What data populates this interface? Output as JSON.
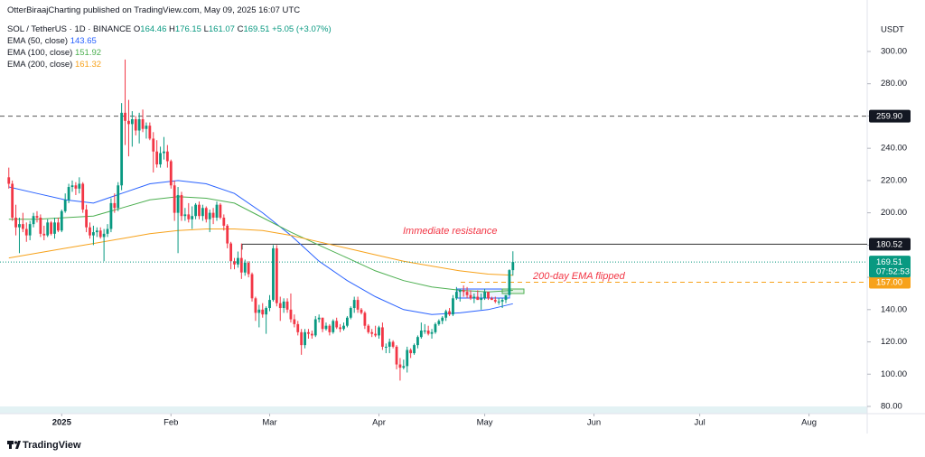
{
  "header": {
    "publisher": "OtterBiraajCharting published on TradingView.com, May 09, 2025 16:07 UTC",
    "symbol": "SOL / TetherUS · 1D · BINANCE",
    "ohlc_letters": [
      "O",
      "H",
      "L",
      "C"
    ],
    "change": "+5.05 (+3.07%)",
    "currency": "USDT",
    "countdown": "07:52:53",
    "brand": "TradingView"
  },
  "chart_data": {
    "type": "candlestick",
    "up_color": "#089981",
    "down_color": "#f23645",
    "candles": [
      [
        222,
        228,
        215,
        218
      ],
      [
        218,
        220,
        195,
        197
      ],
      [
        197,
        205,
        186,
        191
      ],
      [
        191,
        197,
        175,
        193
      ],
      [
        193,
        200,
        188,
        190
      ],
      [
        190,
        194,
        182,
        186
      ],
      [
        186,
        195,
        183,
        193
      ],
      [
        193,
        200,
        191,
        198
      ],
      [
        198,
        201,
        194,
        197
      ],
      [
        197,
        199,
        185,
        187
      ],
      [
        187,
        192,
        183,
        186
      ],
      [
        186,
        196,
        185,
        194
      ],
      [
        194,
        195,
        186,
        187
      ],
      [
        187,
        197,
        184,
        194
      ],
      [
        194,
        197,
        188,
        189
      ],
      [
        189,
        202,
        188,
        201
      ],
      [
        201,
        212,
        200,
        208
      ],
      [
        208,
        218,
        206,
        216
      ],
      [
        216,
        220,
        213,
        217
      ],
      [
        217,
        219,
        211,
        215
      ],
      [
        215,
        222,
        212,
        218
      ],
      [
        218,
        219,
        200,
        202
      ],
      [
        202,
        205,
        188,
        191
      ],
      [
        191,
        194,
        184,
        186
      ],
      [
        186,
        192,
        180,
        188
      ],
      [
        188,
        191,
        185,
        189
      ],
      [
        189,
        191,
        184,
        185
      ],
      [
        185,
        190,
        170,
        187
      ],
      [
        187,
        193,
        185,
        190
      ],
      [
        190,
        209,
        188,
        206
      ],
      [
        206,
        212,
        200,
        203
      ],
      [
        203,
        219,
        201,
        217
      ],
      [
        217,
        268,
        214,
        262
      ],
      [
        262,
        295,
        242,
        257
      ],
      [
        257,
        270,
        235,
        255
      ],
      [
        255,
        263,
        241,
        258
      ],
      [
        258,
        260,
        248,
        251
      ],
      [
        251,
        262,
        243,
        258
      ],
      [
        258,
        264,
        250,
        252
      ],
      [
        252,
        256,
        246,
        254
      ],
      [
        254,
        256,
        245,
        246
      ],
      [
        246,
        250,
        225,
        238
      ],
      [
        238,
        245,
        228,
        230
      ],
      [
        230,
        241,
        228,
        237
      ],
      [
        237,
        247,
        233,
        238
      ],
      [
        238,
        242,
        228,
        232
      ],
      [
        232,
        233,
        215,
        217
      ],
      [
        217,
        220,
        195,
        200
      ],
      [
        200,
        216,
        175,
        211
      ],
      [
        211,
        213,
        195,
        198
      ],
      [
        198,
        203,
        195,
        199
      ],
      [
        199,
        206,
        194,
        196
      ],
      [
        196,
        204,
        190,
        198
      ],
      [
        198,
        206,
        196,
        205
      ],
      [
        205,
        207,
        196,
        198
      ],
      [
        198,
        205,
        195,
        203
      ],
      [
        203,
        204,
        194,
        196
      ],
      [
        196,
        202,
        188,
        200
      ],
      [
        200,
        203,
        193,
        197
      ],
      [
        197,
        207,
        195,
        205
      ],
      [
        205,
        206,
        196,
        197
      ],
      [
        197,
        199,
        189,
        192
      ],
      [
        192,
        193,
        178,
        181
      ],
      [
        181,
        182,
        165,
        170
      ],
      [
        170,
        172,
        165,
        168
      ],
      [
        168,
        176,
        166,
        172
      ],
      [
        172,
        181,
        159,
        163
      ],
      [
        163,
        171,
        161,
        169
      ],
      [
        169,
        170,
        160,
        162
      ],
      [
        162,
        163,
        145,
        147
      ],
      [
        147,
        148,
        133,
        138
      ],
      [
        138,
        143,
        129,
        140
      ],
      [
        140,
        144,
        135,
        137
      ],
      [
        137,
        142,
        125,
        141
      ],
      [
        141,
        149,
        139,
        146
      ],
      [
        146,
        180,
        145,
        178
      ],
      [
        178,
        180,
        142,
        144
      ],
      [
        144,
        148,
        133,
        141
      ],
      [
        141,
        147,
        138,
        145
      ],
      [
        145,
        147,
        138,
        140
      ],
      [
        140,
        150,
        132,
        134
      ],
      [
        134,
        137,
        129,
        131
      ],
      [
        131,
        133,
        124,
        126
      ],
      [
        126,
        128,
        112,
        118
      ],
      [
        118,
        128,
        116,
        126
      ],
      [
        126,
        128,
        122,
        125
      ],
      [
        125,
        127,
        122,
        124
      ],
      [
        124,
        136,
        123,
        134
      ],
      [
        134,
        137,
        132,
        135
      ],
      [
        135,
        135,
        126,
        128
      ],
      [
        128,
        132,
        127,
        130
      ],
      [
        130,
        131,
        124,
        126
      ],
      [
        126,
        134,
        125,
        133
      ],
      [
        133,
        135,
        128,
        129
      ],
      [
        129,
        131,
        126,
        128
      ],
      [
        128,
        132,
        127,
        130
      ],
      [
        130,
        136,
        129,
        135
      ],
      [
        135,
        142,
        134,
        141
      ],
      [
        141,
        148,
        138,
        146
      ],
      [
        146,
        148,
        138,
        140
      ],
      [
        140,
        141,
        137,
        138
      ],
      [
        138,
        139,
        128,
        130
      ],
      [
        130,
        131,
        125,
        126
      ],
      [
        126,
        128,
        123,
        125
      ],
      [
        125,
        130,
        123,
        124
      ],
      [
        124,
        130,
        122,
        129
      ],
      [
        129,
        132,
        115,
        117
      ],
      [
        117,
        119,
        113,
        117
      ],
      [
        117,
        122,
        113,
        120
      ],
      [
        120,
        121,
        116,
        117
      ],
      [
        117,
        118,
        103,
        106
      ],
      [
        106,
        110,
        96,
        104
      ],
      [
        104,
        109,
        103,
        105
      ],
      [
        105,
        117,
        101,
        115
      ],
      [
        115,
        116,
        110,
        113
      ],
      [
        113,
        119,
        112,
        118
      ],
      [
        118,
        124,
        116,
        123
      ],
      [
        123,
        132,
        122,
        127
      ],
      [
        127,
        131,
        125,
        127
      ],
      [
        127,
        130,
        124,
        125
      ],
      [
        125,
        128,
        122,
        126
      ],
      [
        126,
        132,
        125,
        131
      ],
      [
        131,
        134,
        130,
        133
      ],
      [
        133,
        136,
        131,
        135
      ],
      [
        135,
        140,
        133,
        139
      ],
      [
        139,
        141,
        136,
        137
      ],
      [
        137,
        149,
        136,
        147
      ],
      [
        147,
        154,
        146,
        151
      ],
      [
        151,
        153,
        145,
        152
      ],
      [
        152,
        155,
        148,
        151
      ],
      [
        151,
        154,
        147,
        149
      ],
      [
        149,
        152,
        146,
        147
      ],
      [
        147,
        150,
        144,
        148
      ],
      [
        148,
        152,
        146,
        146
      ],
      [
        146,
        150,
        140,
        147
      ],
      [
        147,
        153,
        146,
        151
      ],
      [
        151,
        151,
        146,
        147
      ],
      [
        147,
        148,
        146,
        146
      ],
      [
        146,
        148,
        144,
        145
      ],
      [
        145,
        147,
        143,
        145
      ],
      [
        145,
        147,
        141,
        146
      ],
      [
        146,
        149,
        144,
        149
      ],
      [
        149,
        165,
        149,
        164.46
      ],
      [
        164.46,
        176.15,
        161.07,
        169.51
      ]
    ],
    "series": [
      {
        "name": "EMA (50, close)",
        "color": "#2962ff",
        "x": [
          0,
          8,
          16,
          24,
          32,
          40,
          48,
          56,
          64,
          72,
          80,
          88,
          96,
          104,
          112,
          120,
          128,
          136,
          143
        ],
        "values": [
          216,
          212,
          208,
          206,
          212,
          218,
          220,
          218,
          212,
          200,
          186,
          170,
          158,
          148,
          140,
          137,
          138,
          140,
          143.65
        ]
      },
      {
        "name": "EMA (100, close)",
        "color": "#4caf50",
        "x": [
          0,
          8,
          16,
          24,
          32,
          40,
          48,
          56,
          64,
          72,
          80,
          88,
          96,
          104,
          112,
          120,
          128,
          136,
          143
        ],
        "values": [
          196,
          196,
          197,
          198,
          203,
          208,
          210,
          209,
          206,
          197,
          188,
          180,
          172,
          164,
          158,
          154,
          152,
          151,
          151.92
        ]
      },
      {
        "name": "EMA (200, close)",
        "color": "#f7a21b",
        "x": [
          0,
          8,
          16,
          24,
          32,
          40,
          48,
          56,
          64,
          72,
          80,
          88,
          96,
          104,
          112,
          120,
          128,
          136,
          143
        ],
        "values": [
          172,
          175,
          178,
          181,
          184,
          187,
          189,
          190,
          190,
          189,
          186,
          182,
          178,
          174,
          170,
          167,
          164,
          162,
          161.32
        ]
      }
    ],
    "xlim": [
      -2.5,
      243.5
    ],
    "xticks": [
      {
        "value": 15,
        "label": "2025"
      },
      {
        "value": 46,
        "label": "Feb"
      },
      {
        "value": 74,
        "label": "Mar"
      },
      {
        "value": 105,
        "label": "Apr"
      },
      {
        "value": 135,
        "label": "May"
      },
      {
        "value": 166,
        "label": "Jun"
      },
      {
        "value": 196,
        "label": "Jul"
      },
      {
        "value": 227,
        "label": "Aug"
      }
    ],
    "ylim": [
      74.4,
      320.7
    ],
    "yticks": [
      {
        "value": 80,
        "label": "80.00"
      },
      {
        "value": 100,
        "label": "100.00"
      },
      {
        "value": 120,
        "label": "120.00"
      },
      {
        "value": 140,
        "label": "140.00"
      },
      {
        "value": 160,
        "label": "160.00"
      },
      {
        "value": 180,
        "label": "180.00"
      },
      {
        "value": 200,
        "label": "200.00"
      },
      {
        "value": 220,
        "label": "220.00"
      },
      {
        "value": 240,
        "label": "240.00"
      },
      {
        "value": 260,
        "label": "260.00"
      },
      {
        "value": 280,
        "label": "280.00"
      },
      {
        "value": 300,
        "label": "300.00"
      }
    ],
    "grid": false,
    "levels": [
      {
        "value": 259.9,
        "label": "259.90",
        "style": "dashed",
        "color": "#555555",
        "box": "#131722"
      },
      {
        "value": 180.52,
        "style": "solid",
        "color": "#333333",
        "box": "#131722"
      },
      {
        "value": 157,
        "label": "157.00",
        "style": "dashed",
        "color": "#f7a21b",
        "box": "#f7a21b"
      }
    ],
    "annotations": [
      "Immediate resistance",
      "200-day EMA flipped"
    ]
  }
}
